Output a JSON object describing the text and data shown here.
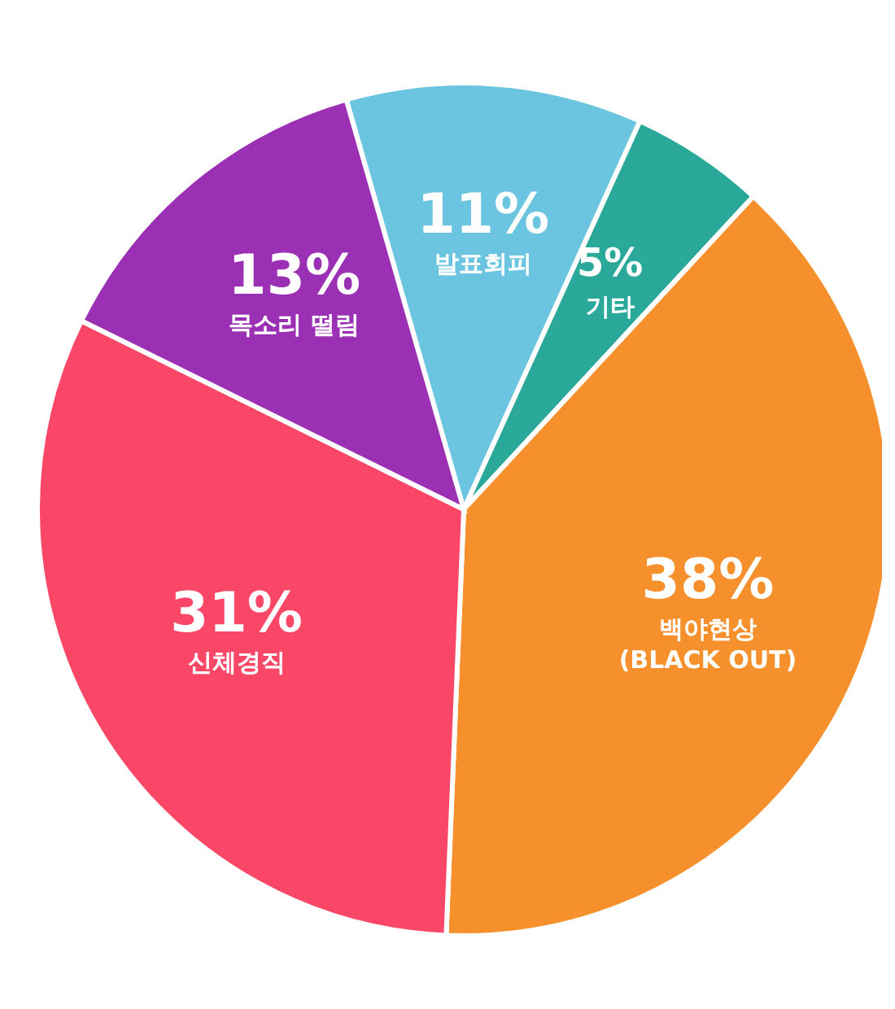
{
  "chart_data": {
    "type": "pie",
    "categories": [
      "발표회피",
      "기타",
      "백야현상 (BLACK OUT)",
      "신체경직",
      "목소리 떨림"
    ],
    "values": [
      11,
      5,
      38,
      31,
      13
    ],
    "value_labels": [
      "11%",
      "5%",
      "38%",
      "31%",
      "13%"
    ],
    "colors": [
      "#6cc5e0",
      "#2aa99a",
      "#f5902c",
      "#fb4767",
      "#9b30b5"
    ],
    "legend": false
  }
}
